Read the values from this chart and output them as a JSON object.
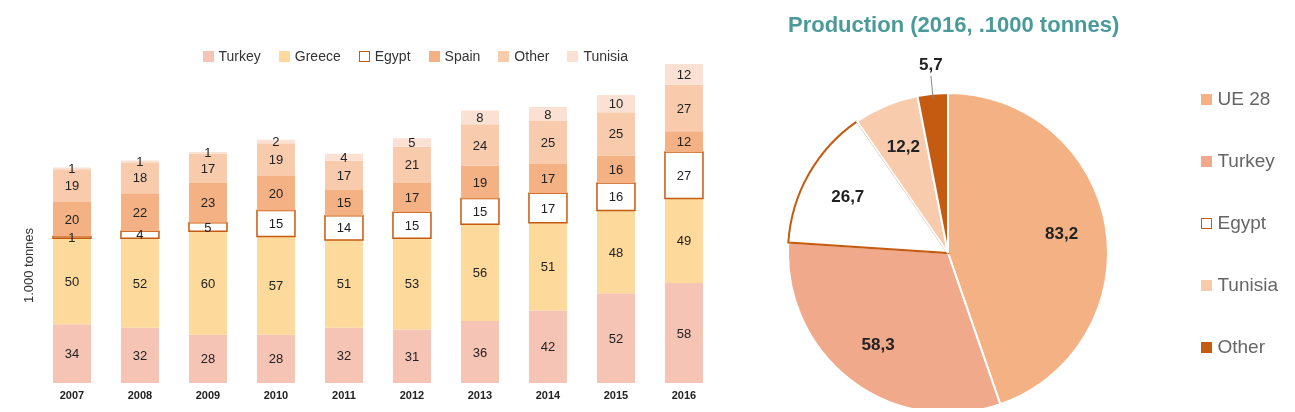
{
  "chart_data": [
    {
      "type": "bar",
      "stacked": true,
      "ylabel": "1.000 tonnes",
      "categories": [
        "2007",
        "2008",
        "2009",
        "2010",
        "2011",
        "2012",
        "2013",
        "2014",
        "2015",
        "2016"
      ],
      "legend": "top",
      "data_labels": true,
      "series": [
        {
          "name": "Turkey",
          "color": "#f6c4b4",
          "values": [
            34,
            32,
            28,
            28,
            32,
            31,
            36,
            42,
            52,
            58
          ]
        },
        {
          "name": "Greece",
          "color": "#fdd99b",
          "values": [
            50,
            52,
            60,
            57,
            51,
            53,
            56,
            51,
            48,
            49
          ]
        },
        {
          "name": "Egypt",
          "color": "#ffffff",
          "values": [
            1,
            4,
            5,
            15,
            14,
            15,
            15,
            17,
            16,
            27
          ]
        },
        {
          "name": "Spain",
          "color": "#f4b183",
          "values": [
            20,
            22,
            23,
            20,
            15,
            17,
            19,
            17,
            16,
            12
          ]
        },
        {
          "name": "Other",
          "color": "#f8cbad",
          "values": [
            19,
            18,
            17,
            19,
            17,
            21,
            24,
            25,
            25,
            27
          ]
        },
        {
          "name": "Tunisia",
          "color": "#fbe1d3",
          "values": [
            1,
            1,
            1,
            2,
            4,
            5,
            8,
            8,
            10,
            12
          ]
        }
      ]
    },
    {
      "type": "pie",
      "title": "Production  (2016, .1000 tonnes)",
      "categories": [
        "UE 28",
        "Turkey",
        "Egypt",
        "Tunisia",
        "Other"
      ],
      "values": [
        83.2,
        58.3,
        26.7,
        12.2,
        5.7
      ],
      "value_labels": [
        "83,2",
        "58,3",
        "26,7",
        "12,2",
        "5,7"
      ],
      "colors": [
        "#f4b183",
        "#f0a98a",
        "#ffffff",
        "#f8cbad",
        "#c55a11"
      ],
      "legend": "right"
    }
  ]
}
